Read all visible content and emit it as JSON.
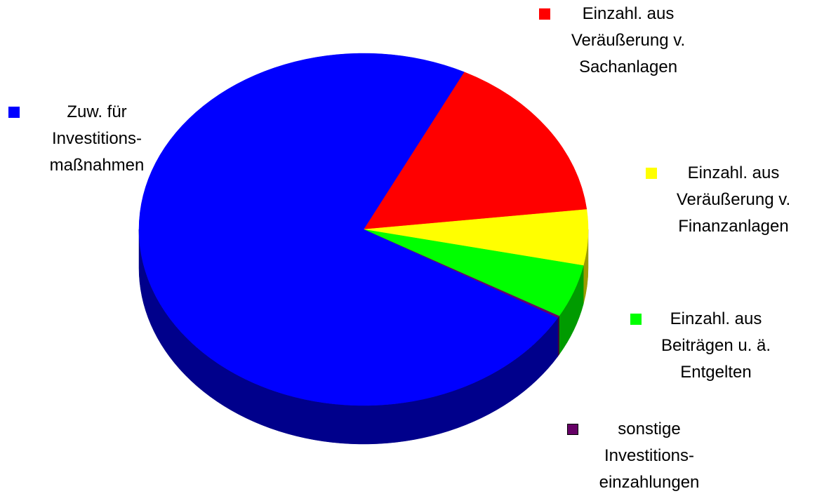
{
  "chart_data": {
    "type": "pie3d",
    "categories": [
      "Einzahl. aus\nVeräußerung v.\nSachanlagen",
      "Einzahl. aus\nVeräußerung v.\nFinanzanlagen",
      "Einzahl. aus\nBeiträgen u. ä.\nEntgelten",
      "sonstige\nInvestitions-\neinzahlungen",
      "Zuw. für\nInvestitions-\nmaßnahmen"
    ],
    "values": [
      15.8,
      5.1,
      4.9,
      0.2,
      74
    ],
    "colors": [
      "#ff0000",
      "#ffff00",
      "#00ff00",
      "#660066",
      "#0000ff"
    ],
    "side_colors": [
      "#9b0000",
      "#9b9b00",
      "#009b00",
      "#3d003d",
      "#00008b"
    ],
    "legend": true
  }
}
